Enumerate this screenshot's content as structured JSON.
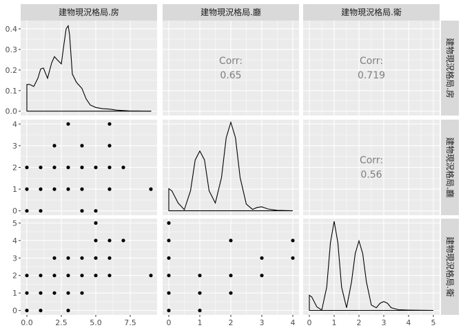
{
  "chart_data": {
    "type": "scatter",
    "title": "",
    "variables": [
      "建物現況格局.房",
      "建物現況格局.廳",
      "建物現況格局.衛"
    ],
    "axes": {
      "rooms": {
        "ticks": [
          0.0,
          2.5,
          5.0,
          7.5
        ],
        "tick_labels": [
          "0.0",
          "2.5",
          "5.0",
          "7.5"
        ],
        "range": [
          -0.45,
          9.45
        ]
      },
      "halls": {
        "ticks": [
          0,
          1,
          2,
          3,
          4
        ],
        "tick_labels": [
          "0",
          "1",
          "2",
          "3",
          "4"
        ],
        "range": [
          -0.2,
          4.2
        ]
      },
      "baths": {
        "ticks": [
          0,
          1,
          2,
          3,
          4,
          5
        ],
        "tick_labels": [
          "0",
          "1",
          "2",
          "3",
          "4",
          "5"
        ],
        "range": [
          -0.25,
          5.25
        ]
      },
      "density_y": {
        "ticks": [
          0.0,
          0.1,
          0.2,
          0.3,
          0.4
        ],
        "tick_labels": [
          "0.0",
          "0.1",
          "0.2",
          "0.3",
          "0.4"
        ],
        "range": [
          -0.021,
          0.44
        ]
      }
    },
    "correlations": [
      {
        "label": "Corr:",
        "x_var": "建物現況格局.廳",
        "y_var": "建物現況格局.房",
        "value": "0.65"
      },
      {
        "label": "Corr:",
        "x_var": "建物現況格局.衛",
        "y_var": "建物現況格局.房",
        "value": "0.719"
      },
      {
        "label": "Corr:",
        "x_var": "建物現況格局.衛",
        "y_var": "建物現況格局.廳",
        "value": "0.56"
      }
    ],
    "densities": {
      "rooms": {
        "x": [
          0,
          0.2,
          0.5,
          0.8,
          1.0,
          1.2,
          1.5,
          1.8,
          2.0,
          2.2,
          2.5,
          2.7,
          2.85,
          3.0,
          3.1,
          3.3,
          3.6,
          4.0,
          4.3,
          4.6,
          5.0,
          5.5,
          6.0,
          6.5,
          7.0,
          7.5,
          8.0,
          8.5,
          9.0
        ],
        "y": [
          0.13,
          0.13,
          0.12,
          0.16,
          0.205,
          0.21,
          0.16,
          0.235,
          0.265,
          0.25,
          0.23,
          0.33,
          0.4,
          0.415,
          0.37,
          0.18,
          0.14,
          0.11,
          0.06,
          0.03,
          0.018,
          0.012,
          0.01,
          0.005,
          0.003,
          0.001,
          0.001,
          0.0005,
          0.0005
        ]
      },
      "halls": {
        "x": [
          0,
          0.1,
          0.3,
          0.5,
          0.7,
          0.85,
          1.0,
          1.15,
          1.3,
          1.5,
          1.7,
          1.85,
          2.0,
          2.15,
          2.3,
          2.5,
          2.7,
          2.85,
          3.0,
          3.2,
          3.5,
          4.0
        ],
        "y": [
          1.0,
          0.9,
          0.35,
          0.05,
          0.9,
          2.3,
          2.7,
          2.3,
          0.9,
          0.35,
          1.5,
          3.3,
          4.0,
          3.3,
          1.5,
          0.3,
          0.06,
          0.15,
          0.18,
          0.08,
          0.02,
          0.0
        ]
      },
      "baths": {
        "x": [
          0,
          0.1,
          0.3,
          0.5,
          0.7,
          0.85,
          1.0,
          1.15,
          1.3,
          1.5,
          1.7,
          1.85,
          2.0,
          2.15,
          2.3,
          2.5,
          2.7,
          2.85,
          3.0,
          3.15,
          3.3,
          3.6,
          4.0,
          4.5,
          5.0
        ],
        "y": [
          0.85,
          0.75,
          0.2,
          0.02,
          1.3,
          3.8,
          5.0,
          3.8,
          1.3,
          0.15,
          1.6,
          3.2,
          3.9,
          3.2,
          1.6,
          0.3,
          0.15,
          0.4,
          0.5,
          0.4,
          0.15,
          0.04,
          0.02,
          0.01,
          0.0
        ]
      }
    },
    "scatter": {
      "halls_vs_rooms": {
        "x": [
          3,
          6,
          2,
          4,
          6,
          0,
          1,
          2,
          3,
          4,
          5,
          6,
          7,
          0,
          1,
          2,
          3,
          4,
          6,
          9,
          0,
          1,
          4,
          5
        ],
        "y": [
          4,
          4,
          3,
          3,
          3,
          2,
          2,
          2,
          2,
          2,
          2,
          2,
          2,
          1,
          1,
          1,
          1,
          1,
          1,
          1,
          0,
          0,
          0,
          0
        ]
      },
      "baths_vs_rooms": {
        "x": [
          5,
          5,
          6,
          7,
          2,
          3,
          4,
          5,
          6,
          0,
          1,
          2,
          3,
          4,
          5,
          6,
          9,
          0,
          1,
          2,
          3,
          4,
          0,
          1,
          3
        ],
        "y": [
          5,
          4,
          4,
          4,
          3,
          3,
          3,
          3,
          3,
          2,
          2,
          2,
          2,
          2,
          2,
          2,
          2,
          1,
          1,
          1,
          1,
          1,
          0,
          0,
          0
        ]
      },
      "baths_vs_halls": {
        "x": [
          0,
          0,
          2,
          4,
          0,
          3,
          4,
          0,
          1,
          2,
          3,
          0,
          1,
          2,
          0,
          1
        ],
        "y": [
          5,
          4,
          4,
          4,
          3,
          3,
          3,
          2,
          2,
          2,
          2,
          1,
          1,
          1,
          0,
          0
        ]
      }
    }
  }
}
